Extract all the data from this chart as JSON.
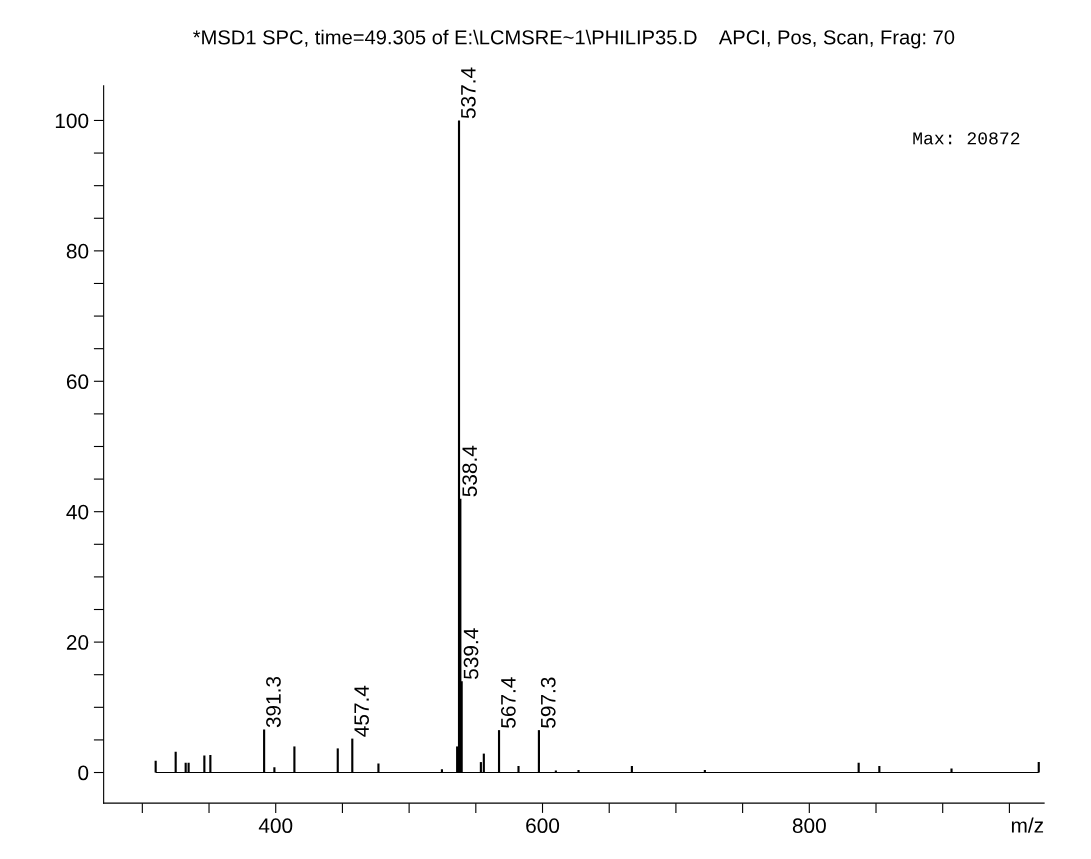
{
  "chart_data": {
    "type": "bar",
    "title": "*MSD1 SPC, time=49.305 of E:\\LCMSRE~1\\PHILIP35.D    APCI, Pos, Scan, Frag: 70",
    "xlabel": "m/z",
    "x": [
      310,
      325,
      332.5,
      334.7,
      346.5,
      351,
      391.3,
      399,
      414,
      446.5,
      457.4,
      477,
      524.6,
      536,
      537.4,
      538.4,
      539.4,
      553.8,
      556,
      567.4,
      582,
      597.3,
      610,
      627,
      667,
      721.7,
      837,
      852.5,
      906.6,
      972
    ],
    "values": [
      1.8,
      3.2,
      1.5,
      1.5,
      2.6,
      2.7,
      6.6,
      0.8,
      4.0,
      3.7,
      5.2,
      1.4,
      0.5,
      4,
      100,
      42,
      14,
      1.6,
      2.9,
      6.5,
      1.0,
      6.5,
      0.3,
      0.4,
      1.0,
      0.4,
      1.5,
      1.0,
      0.6,
      1.6
    ],
    "color": "#000000",
    "ref_lines": [
      {
        "axis": "y",
        "value": 0,
        "color": "#000000"
      }
    ],
    "annotations": [
      "Max: 20872",
      {
        "text": "391.3",
        "x": 391.3,
        "y": 6.6
      },
      {
        "text": "457.4",
        "x": 457.4,
        "y": 5.2
      },
      {
        "text": "537.4",
        "x": 537.4,
        "y": 100
      },
      {
        "text": "538.4",
        "x": 538.4,
        "y": 42
      },
      {
        "text": "539.4",
        "x": 539.4,
        "y": 14
      },
      {
        "text": "567.4",
        "x": 567.4,
        "y": 6.5
      },
      {
        "text": "597.3",
        "x": 597.3,
        "y": 6.5
      }
    ],
    "xlim": [
      271,
      976
    ],
    "xticks": [
      {
        "value": 300,
        "label": null
      },
      {
        "value": 350,
        "label": null
      },
      400,
      {
        "value": 450,
        "label": null
      },
      {
        "value": 500,
        "label": null
      },
      {
        "value": 550,
        "label": null
      },
      600,
      {
        "value": 650,
        "label": null
      },
      {
        "value": 700,
        "label": null
      },
      {
        "value": 750,
        "label": null
      },
      800,
      {
        "value": 850,
        "label": null
      },
      {
        "value": 900,
        "label": null
      },
      {
        "value": 950,
        "label": null
      }
    ],
    "ylim": [
      -4.7,
      105.3
    ],
    "yticks": [
      0,
      {
        "value": 5,
        "label": null
      },
      {
        "value": 10,
        "label": null
      },
      {
        "value": 15,
        "label": null
      },
      20,
      {
        "value": 25,
        "label": null
      },
      {
        "value": 30,
        "label": null
      },
      {
        "value": 35,
        "label": null
      },
      40,
      {
        "value": 45,
        "label": null
      },
      {
        "value": 50,
        "label": null
      },
      {
        "value": 55,
        "label": null
      },
      60,
      {
        "value": 65,
        "label": null
      },
      {
        "value": 70,
        "label": null
      },
      {
        "value": 75,
        "label": null
      },
      80,
      {
        "value": 85,
        "label": null
      },
      {
        "value": 90,
        "label": null
      },
      {
        "value": 95,
        "label": null
      },
      100
    ],
    "grid": false,
    "legend": false
  }
}
